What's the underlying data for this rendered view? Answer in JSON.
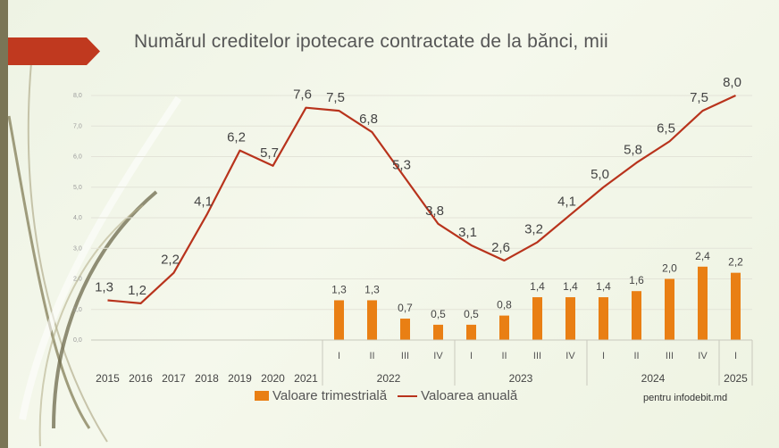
{
  "slide": {
    "title": "Numărul creditelor ipotecare contractate de la bănci, mii",
    "source": "pentru infodebit.md",
    "colors": {
      "bar": "#e97f14",
      "line": "#b8331c",
      "accent_arrow": "#c0391f",
      "left_bar": "#7a7556"
    }
  },
  "chart_data": {
    "type": "bar",
    "title": "Numărul creditelor ipotecare contractate de la bănci, mii",
    "ylim": [
      0,
      8
    ],
    "yticks": [
      "0,0",
      "1,0",
      "2,0",
      "3,0",
      "4,0",
      "5,0",
      "6,0",
      "7,0",
      "8,0"
    ],
    "grid": true,
    "legend_position": "bottom",
    "legend": [
      "Valoare trimestrială",
      "Valoarea anuală"
    ],
    "categories": [
      "2015",
      "2016",
      "2017",
      "2018",
      "2019",
      "2020",
      "2021",
      "I",
      "II",
      "III",
      "IV",
      "I",
      "II",
      "III",
      "IV",
      "I",
      "II",
      "III",
      "IV",
      "I"
    ],
    "year_groups": [
      {
        "label": "2022",
        "start": 7,
        "end": 10
      },
      {
        "label": "2023",
        "start": 11,
        "end": 14
      },
      {
        "label": "2024",
        "start": 15,
        "end": 18
      },
      {
        "label": "2025",
        "start": 19,
        "end": 19
      }
    ],
    "series": [
      {
        "name": "Valoare trimestrială",
        "type": "bar",
        "values": [
          null,
          null,
          null,
          null,
          null,
          null,
          null,
          1.3,
          1.3,
          0.7,
          0.5,
          0.5,
          0.8,
          1.4,
          1.4,
          1.4,
          1.6,
          2.0,
          2.4,
          2.2
        ],
        "labels": [
          "",
          "",
          "",
          "",
          "",
          "",
          "",
          "1,3",
          "1,3",
          "0,7",
          "0,5",
          "0,5",
          "0,8",
          "1,4",
          "1,4",
          "1,4",
          "1,6",
          "2,0",
          "2,4",
          "2,2"
        ]
      },
      {
        "name": "Valoarea anuală",
        "type": "line",
        "values": [
          1.3,
          1.2,
          2.2,
          4.1,
          6.2,
          5.7,
          7.6,
          7.5,
          6.8,
          5.3,
          3.8,
          3.1,
          2.6,
          3.2,
          4.1,
          5.0,
          5.8,
          6.5,
          7.5,
          8.0
        ],
        "labels": [
          "1,3",
          "1,2",
          "2,2",
          "4,1",
          "6,2",
          "5,7",
          "7,6",
          "7,5",
          "6,8",
          "5,3",
          "3,8",
          "3,1",
          "2,6",
          "3,2",
          "4,1",
          "5,0",
          "5,8",
          "6,5",
          "7,5",
          "8,0"
        ]
      }
    ]
  }
}
